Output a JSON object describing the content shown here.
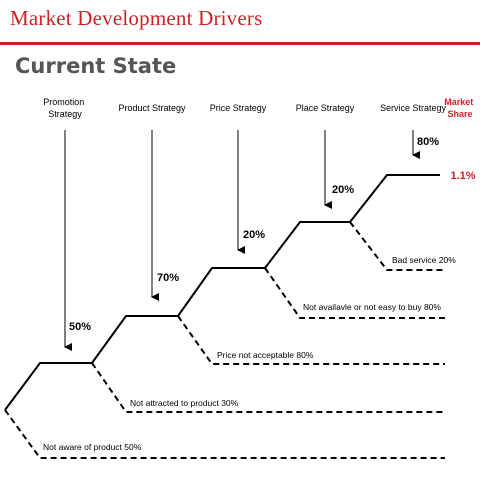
{
  "title": "Market Development Drivers",
  "subtitle": "Current State",
  "market_share_label": [
    "Market",
    "Share"
  ],
  "market_share_value": "1.1%",
  "drivers": [
    {
      "label": [
        "Promotion",
        "Strategy"
      ],
      "rate": "50%",
      "loss": "Not aware of product 50%"
    },
    {
      "label": [
        "Product Strategy"
      ],
      "rate": "70%",
      "loss": "Not attracted to product 30%"
    },
    {
      "label": [
        "Price Strategy"
      ],
      "rate": "20%",
      "loss": "Price not acceptable 80%"
    },
    {
      "label": [
        "Place Strategy"
      ],
      "rate": "20%",
      "loss": "Not availavle or not easy to buy 80%"
    },
    {
      "label": [
        "Service Strategy"
      ],
      "rate": "80%",
      "loss": "Bad service 20%"
    }
  ],
  "colors": {
    "accent": "#d21f26",
    "line": "#000000",
    "subtitle": "#555555"
  }
}
